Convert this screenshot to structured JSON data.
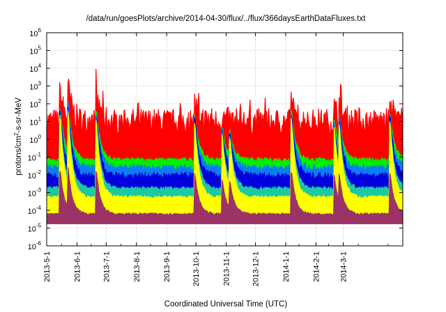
{
  "chart_data": {
    "type": "area",
    "title": "/data/run/goesPlots/archive/2014-04-30/flux/../flux/366daysEarthDataFluxes.txt",
    "xlabel": "Coordinated Universal Time (UTC)",
    "ylabel_prefix": "protons/cm",
    "ylabel_sup": "2",
    "ylabel_suffix": "-s-sr-MeV",
    "yscale": "log",
    "ylim_exp": [
      -6,
      6
    ],
    "y_ticks": [
      {
        "base": "10",
        "exp": "-6"
      },
      {
        "base": "10",
        "exp": "-5"
      },
      {
        "base": "10",
        "exp": "-4"
      },
      {
        "base": "10",
        "exp": "-3"
      },
      {
        "base": "10",
        "exp": "-2"
      },
      {
        "base": "10",
        "exp": "-1"
      },
      {
        "base": "10",
        "exp": "0"
      },
      {
        "base": "10",
        "exp": "1"
      },
      {
        "base": "10",
        "exp": "2"
      },
      {
        "base": "10",
        "exp": "3"
      },
      {
        "base": "10",
        "exp": "4"
      },
      {
        "base": "10",
        "exp": "5"
      },
      {
        "base": "10",
        "exp": "6"
      }
    ],
    "x_range": [
      "2013-05-01",
      "2014-05-01"
    ],
    "x_tick_labels": [
      "2013-5-1",
      "2013-6-1",
      "2013-7-1",
      "2013-8-1",
      "2013-9-1",
      "2013-10-1",
      "2013-11-1",
      "2013-12-1",
      "2014-1-1",
      "2014-2-1",
      "2014-3-1"
    ],
    "grid": true,
    "series": [
      {
        "color": "#ff0000",
        "baseline_exp": 1.0,
        "noise": 0.75
      },
      {
        "color": "#00ee00",
        "baseline_exp": -1.15,
        "noise": 0.12
      },
      {
        "color": "#0b7cf5",
        "baseline_exp": -1.6,
        "noise": 0.18
      },
      {
        "color": "#0000dd",
        "baseline_exp": -2.05,
        "noise": 0.2
      },
      {
        "color": "#1dc9a0",
        "baseline_exp": -2.75,
        "noise": 0.1
      },
      {
        "color": "#ffff00",
        "baseline_exp": -3.25,
        "noise": 0.08
      },
      {
        "color": "#9c3366",
        "baseline_exp": -4.2,
        "noise": 0.06
      }
    ],
    "events": [
      {
        "date": "2013-05-15",
        "peak_exp": 2.7
      },
      {
        "date": "2013-05-23",
        "peak_exp": 3.2
      },
      {
        "date": "2013-06-21",
        "peak_exp": 2.5
      },
      {
        "date": "2013-09-30",
        "peak_exp": 2.2
      },
      {
        "date": "2013-10-28",
        "peak_exp": 1.3
      },
      {
        "date": "2013-11-05",
        "peak_exp": 1.0
      },
      {
        "date": "2014-01-07",
        "peak_exp": 2.6
      },
      {
        "date": "2014-02-20",
        "peak_exp": 1.9
      },
      {
        "date": "2014-02-25",
        "peak_exp": 2.2
      },
      {
        "date": "2014-04-18",
        "peak_exp": 2.4
      }
    ]
  }
}
